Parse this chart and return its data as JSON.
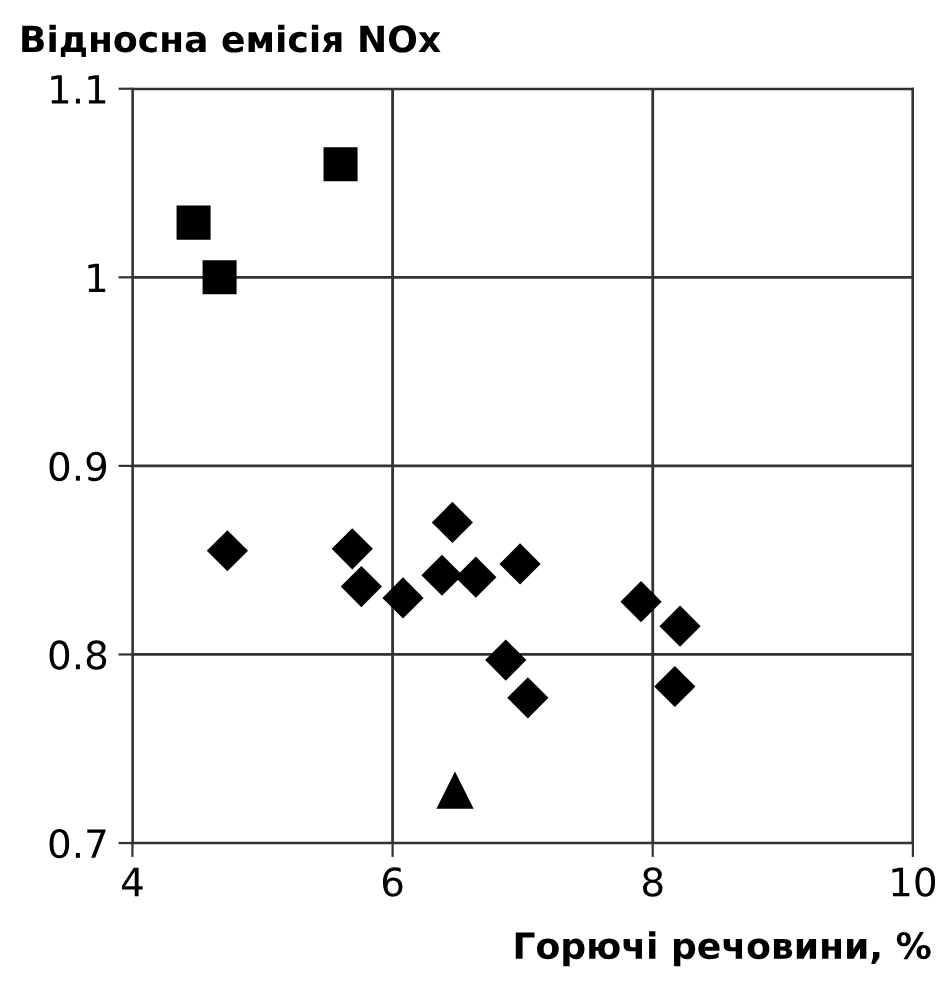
{
  "chart_data": {
    "type": "scatter",
    "ylabel": "Відносна емісія NOx",
    "xlabel": "Горючі речовини, %",
    "xlim": [
      4,
      10
    ],
    "xticks": [
      4,
      6,
      8,
      10
    ],
    "ylim": [
      0.7,
      1.1
    ],
    "yticks": [
      {
        "value": 0.7,
        "label": "0.7"
      },
      {
        "value": 0.8,
        "label": "0.8"
      },
      {
        "value": 0.9,
        "label": "0.9"
      },
      {
        "value": 1,
        "label": "1"
      },
      {
        "value": 1.1,
        "label": "1.1"
      }
    ],
    "grid": true,
    "legend": false,
    "series": [
      {
        "color": "#000000",
        "marker": "square",
        "x": [
          4.47,
          4.67,
          5.6
        ],
        "values": [
          1.029,
          1.0,
          1.06
        ]
      },
      {
        "color": "#000000",
        "marker": "diamond",
        "x": [
          4.73,
          5.69,
          5.76,
          6.08,
          6.46,
          6.38,
          6.64,
          6.98,
          7.91,
          8.21,
          6.87,
          7.04,
          8.17
        ],
        "values": [
          0.855,
          0.856,
          0.836,
          0.83,
          0.87,
          0.842,
          0.841,
          0.848,
          0.828,
          0.815,
          0.797,
          0.777,
          0.783
        ]
      },
      {
        "color": "#000000",
        "marker": "triangle",
        "x": [
          6.48
        ],
        "values": [
          0.728
        ]
      }
    ]
  }
}
